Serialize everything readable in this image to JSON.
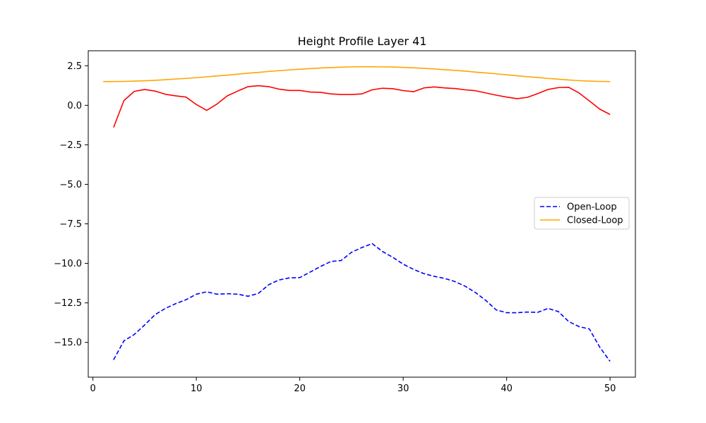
{
  "chart_data": {
    "type": "line",
    "title": "Height Profile Layer 41",
    "xlabel": "",
    "ylabel": "",
    "xlim": [
      -0.45,
      52.45
    ],
    "ylim": [
      -17.2,
      3.45
    ],
    "xticks": [
      0,
      10,
      20,
      30,
      40,
      50
    ],
    "yticks": [
      2.5,
      0.0,
      -2.5,
      -5.0,
      -7.5,
      -10.0,
      -12.5,
      -15.0
    ],
    "ytick_labels": [
      "2.5",
      "0.0",
      "−2.5",
      "−5.0",
      "−7.5",
      "−10.0",
      "−12.5",
      "−15.0"
    ],
    "grid": false,
    "legend": {
      "placement": "center-right",
      "entries": [
        "Open-Loop",
        "Closed-Loop"
      ]
    },
    "series": [
      {
        "name": "Open-Loop",
        "color": "#0000ff",
        "style": "dashed",
        "x": [
          2,
          3,
          4,
          5,
          6,
          7,
          8,
          9,
          10,
          11,
          12,
          13,
          14,
          15,
          16,
          17,
          18,
          19,
          20,
          21,
          22,
          23,
          24,
          25,
          26,
          27,
          28,
          29,
          30,
          31,
          32,
          33,
          34,
          35,
          36,
          37,
          38,
          39,
          40,
          41,
          42,
          43,
          44,
          45,
          46,
          47,
          48,
          49,
          50
        ],
        "y": [
          -16.1,
          -14.9,
          -14.5,
          -13.9,
          -13.25,
          -12.85,
          -12.55,
          -12.3,
          -11.95,
          -11.8,
          -11.95,
          -11.92,
          -11.95,
          -12.08,
          -11.9,
          -11.35,
          -11.05,
          -10.92,
          -10.9,
          -10.55,
          -10.2,
          -9.88,
          -9.82,
          -9.3,
          -9.0,
          -8.75,
          -9.25,
          -9.62,
          -10.05,
          -10.38,
          -10.65,
          -10.82,
          -10.95,
          -11.15,
          -11.45,
          -11.85,
          -12.35,
          -12.95,
          -13.12,
          -13.12,
          -13.08,
          -13.1,
          -12.85,
          -13.05,
          -13.68,
          -14.0,
          -14.15,
          -15.3,
          -16.2
        ]
      },
      {
        "name": "Closed-Loop",
        "color": "#ffa500",
        "style": "solid",
        "x": [
          1,
          2,
          3,
          4,
          5,
          6,
          7,
          8,
          9,
          10,
          11,
          12,
          13,
          14,
          15,
          16,
          17,
          18,
          19,
          20,
          21,
          22,
          23,
          24,
          25,
          26,
          27,
          28,
          29,
          30,
          31,
          32,
          33,
          34,
          35,
          36,
          37,
          38,
          39,
          40,
          41,
          42,
          43,
          44,
          45,
          46,
          47,
          48,
          49,
          50
        ],
        "y": [
          1.5,
          1.5,
          1.51,
          1.53,
          1.55,
          1.58,
          1.62,
          1.66,
          1.7,
          1.75,
          1.8,
          1.86,
          1.91,
          1.97,
          2.03,
          2.08,
          2.14,
          2.19,
          2.24,
          2.28,
          2.32,
          2.36,
          2.39,
          2.41,
          2.43,
          2.44,
          2.44,
          2.43,
          2.42,
          2.4,
          2.37,
          2.34,
          2.3,
          2.25,
          2.21,
          2.16,
          2.1,
          2.05,
          1.99,
          1.93,
          1.87,
          1.81,
          1.76,
          1.7,
          1.65,
          1.6,
          1.56,
          1.53,
          1.51,
          1.5
        ]
      },
      {
        "color": "#ff0000",
        "style": "solid",
        "x": [
          2,
          3,
          4,
          5,
          6,
          7,
          8,
          9,
          10,
          11,
          12,
          13,
          14,
          15,
          16,
          17,
          18,
          19,
          20,
          21,
          22,
          23,
          24,
          25,
          26,
          27,
          28,
          29,
          30,
          31,
          32,
          33,
          34,
          35,
          36,
          37,
          38,
          39,
          40,
          41,
          42,
          43,
          44,
          45,
          46,
          47,
          48,
          49,
          50
        ],
        "y": [
          -1.4,
          0.3,
          0.88,
          1.0,
          0.9,
          0.7,
          0.6,
          0.52,
          0.05,
          -0.32,
          0.08,
          0.6,
          0.9,
          1.18,
          1.24,
          1.18,
          1.02,
          0.94,
          0.94,
          0.84,
          0.82,
          0.72,
          0.68,
          0.68,
          0.72,
          0.98,
          1.08,
          1.05,
          0.93,
          0.86,
          1.1,
          1.16,
          1.1,
          1.06,
          0.98,
          0.92,
          0.78,
          0.64,
          0.52,
          0.42,
          0.5,
          0.74,
          1.0,
          1.12,
          1.14,
          0.78,
          0.28,
          -0.24,
          -0.58
        ]
      }
    ]
  }
}
